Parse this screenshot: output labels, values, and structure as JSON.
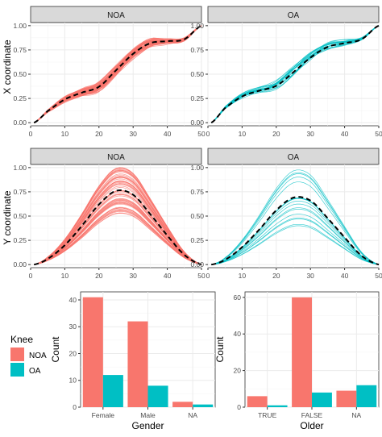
{
  "colors": {
    "noa": "#F8766D",
    "oa": "#00BFC4",
    "mean": "#000000",
    "strip": "#D9D9D9",
    "grid": "#EBEBEB",
    "axis_text": "#4D4D4D"
  },
  "chart_data": [
    {
      "type": "line",
      "panel": "top-left",
      "strip_label": "NOA",
      "ylabel": "X coordinate",
      "xlabel": "",
      "xlim": [
        0,
        50
      ],
      "ylim": [
        0,
        1
      ],
      "x_ticks": [
        "0",
        "10",
        "20",
        "30",
        "40",
        "50"
      ],
      "y_ticks": [
        "0.00",
        "0.25",
        "0.50",
        "0.75",
        "1.00"
      ],
      "x": [
        1,
        5,
        10,
        15,
        20,
        25,
        30,
        35,
        40,
        45,
        50
      ],
      "mean": [
        0.0,
        0.12,
        0.24,
        0.31,
        0.37,
        0.54,
        0.71,
        0.82,
        0.84,
        0.86,
        1.0
      ],
      "series_count": 60,
      "spread": 0.045
    },
    {
      "type": "line",
      "panel": "top-right",
      "strip_label": "OA",
      "ylabel": "",
      "xlabel": "",
      "xlim": [
        0,
        50
      ],
      "ylim": [
        0,
        1
      ],
      "x_ticks": [
        "0",
        "10",
        "20",
        "30",
        "40",
        "50"
      ],
      "y_ticks": [
        "0.00",
        "0.25",
        "0.50",
        "0.75",
        "1.00"
      ],
      "x": [
        1,
        5,
        10,
        15,
        20,
        25,
        30,
        35,
        40,
        45,
        50
      ],
      "mean": [
        0.0,
        0.15,
        0.27,
        0.33,
        0.38,
        0.52,
        0.67,
        0.78,
        0.82,
        0.86,
        1.0
      ],
      "series_count": 18,
      "spread": 0.05
    },
    {
      "type": "line",
      "panel": "middle-left",
      "strip_label": "NOA",
      "ylabel": "Y coordinate",
      "xlabel": "",
      "xlim": [
        0,
        50
      ],
      "ylim": [
        0,
        1
      ],
      "x_ticks": [
        "0",
        "10",
        "20",
        "30",
        "40",
        "50"
      ],
      "y_ticks": [
        "0.00",
        "0.25",
        "0.50",
        "0.75",
        "1.00"
      ],
      "x": [
        1,
        5,
        10,
        15,
        20,
        25,
        30,
        35,
        40,
        45,
        50
      ],
      "mean": [
        0.0,
        0.06,
        0.2,
        0.4,
        0.62,
        0.76,
        0.72,
        0.52,
        0.3,
        0.1,
        0.0
      ],
      "series_count": 60,
      "spread": 0.13
    },
    {
      "type": "line",
      "panel": "middle-right",
      "strip_label": "OA",
      "ylabel": "",
      "xlabel": "",
      "xlim": [
        0,
        50
      ],
      "ylim": [
        0,
        1
      ],
      "x_ticks": [
        "0",
        "10",
        "20",
        "30",
        "40",
        "50"
      ],
      "y_ticks": [
        "0.00",
        "0.25",
        "0.50",
        "0.75",
        "1.00"
      ],
      "x": [
        1,
        5,
        10,
        15,
        20,
        25,
        30,
        35,
        40,
        45,
        50
      ],
      "mean": [
        0.0,
        0.05,
        0.18,
        0.36,
        0.56,
        0.69,
        0.66,
        0.48,
        0.28,
        0.09,
        0.0
      ],
      "series_count": 18,
      "spread": 0.18
    },
    {
      "type": "bar",
      "panel": "bottom-left",
      "xlabel": "Gender",
      "ylabel": "Count",
      "categories": [
        "Female",
        "Male",
        "NA"
      ],
      "y_ticks": [
        0,
        10,
        20,
        30,
        40
      ],
      "ylim": [
        0,
        43
      ],
      "series": [
        {
          "name": "NOA",
          "values": [
            41,
            32,
            2
          ]
        },
        {
          "name": "OA",
          "values": [
            12,
            8,
            1
          ]
        }
      ]
    },
    {
      "type": "bar",
      "panel": "bottom-right",
      "xlabel": "Older",
      "ylabel": "Count",
      "categories": [
        "TRUE",
        "FALSE",
        "NA"
      ],
      "y_ticks": [
        0,
        20,
        40,
        60
      ],
      "ylim": [
        0,
        63
      ],
      "series": [
        {
          "name": "NOA",
          "values": [
            6,
            60,
            9
          ]
        },
        {
          "name": "OA",
          "values": [
            1,
            8,
            12
          ]
        }
      ]
    }
  ],
  "legend": {
    "title": "Knee",
    "items": [
      {
        "label": "NOA",
        "color": "#F8766D"
      },
      {
        "label": "OA",
        "color": "#00BFC4"
      }
    ]
  }
}
